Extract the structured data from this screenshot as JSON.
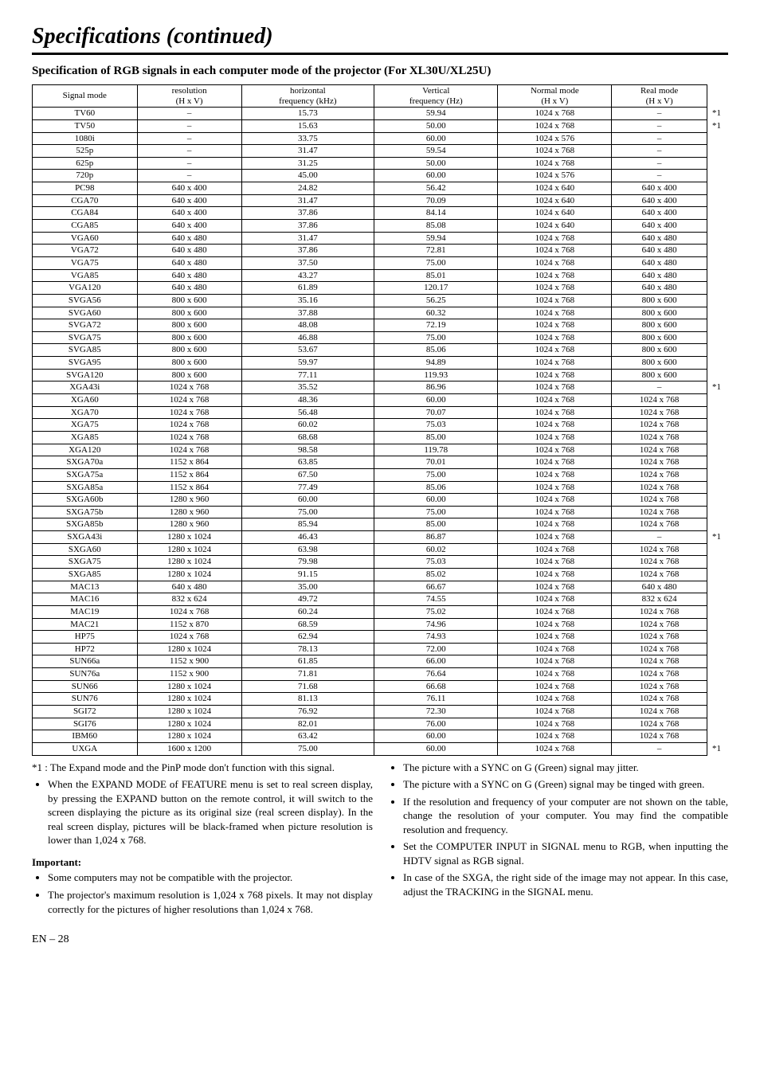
{
  "title": "Specifications (continued)",
  "subtitle": "Specification of RGB signals in each computer mode of the projector (For XL30U/XL25U)",
  "table": {
    "headers": [
      {
        "l1": "Signal mode",
        "l2": ""
      },
      {
        "l1": "resolution",
        "l2": "(H x V)"
      },
      {
        "l1": "horizontal",
        "l2": "frequency (kHz)"
      },
      {
        "l1": "Vertical",
        "l2": "frequency (Hz)"
      },
      {
        "l1": "Normal mode",
        "l2": "(H x V)"
      },
      {
        "l1": "Real mode",
        "l2": "(H x V)"
      }
    ],
    "rows": [
      {
        "c": [
          "TV60",
          "–",
          "15.73",
          "59.94",
          "1024 x 768",
          "–"
        ],
        "n": "*1"
      },
      {
        "c": [
          "TV50",
          "–",
          "15.63",
          "50.00",
          "1024 x 768",
          "–"
        ],
        "n": "*1"
      },
      {
        "c": [
          "1080i",
          "–",
          "33.75",
          "60.00",
          "1024 x 576",
          "–"
        ],
        "n": ""
      },
      {
        "c": [
          "525p",
          "–",
          "31.47",
          "59.54",
          "1024 x 768",
          "–"
        ],
        "n": ""
      },
      {
        "c": [
          "625p",
          "–",
          "31.25",
          "50.00",
          "1024 x 768",
          "–"
        ],
        "n": ""
      },
      {
        "c": [
          "720p",
          "–",
          "45.00",
          "60.00",
          "1024 x 576",
          "–"
        ],
        "n": ""
      },
      {
        "c": [
          "PC98",
          "640 x 400",
          "24.82",
          "56.42",
          "1024 x 640",
          "640 x 400"
        ],
        "n": ""
      },
      {
        "c": [
          "CGA70",
          "640 x 400",
          "31.47",
          "70.09",
          "1024 x 640",
          "640 x 400"
        ],
        "n": ""
      },
      {
        "c": [
          "CGA84",
          "640 x 400",
          "37.86",
          "84.14",
          "1024 x 640",
          "640 x 400"
        ],
        "n": ""
      },
      {
        "c": [
          "CGA85",
          "640 x 400",
          "37.86",
          "85.08",
          "1024 x 640",
          "640 x 400"
        ],
        "n": ""
      },
      {
        "c": [
          "VGA60",
          "640 x 480",
          "31.47",
          "59.94",
          "1024 x 768",
          "640 x 480"
        ],
        "n": ""
      },
      {
        "c": [
          "VGA72",
          "640 x 480",
          "37.86",
          "72.81",
          "1024 x 768",
          "640 x 480"
        ],
        "n": ""
      },
      {
        "c": [
          "VGA75",
          "640 x 480",
          "37.50",
          "75.00",
          "1024 x 768",
          "640 x 480"
        ],
        "n": ""
      },
      {
        "c": [
          "VGA85",
          "640 x 480",
          "43.27",
          "85.01",
          "1024 x 768",
          "640 x 480"
        ],
        "n": ""
      },
      {
        "c": [
          "VGA120",
          "640 x 480",
          "61.89",
          "120.17",
          "1024 x 768",
          "640 x 480"
        ],
        "n": ""
      },
      {
        "c": [
          "SVGA56",
          "800 x 600",
          "35.16",
          "56.25",
          "1024 x 768",
          "800 x 600"
        ],
        "n": ""
      },
      {
        "c": [
          "SVGA60",
          "800 x 600",
          "37.88",
          "60.32",
          "1024 x 768",
          "800 x 600"
        ],
        "n": ""
      },
      {
        "c": [
          "SVGA72",
          "800 x 600",
          "48.08",
          "72.19",
          "1024 x 768",
          "800 x 600"
        ],
        "n": ""
      },
      {
        "c": [
          "SVGA75",
          "800 x 600",
          "46.88",
          "75.00",
          "1024 x 768",
          "800 x 600"
        ],
        "n": ""
      },
      {
        "c": [
          "SVGA85",
          "800 x 600",
          "53.67",
          "85.06",
          "1024 x 768",
          "800 x 600"
        ],
        "n": ""
      },
      {
        "c": [
          "SVGA95",
          "800 x 600",
          "59.97",
          "94.89",
          "1024 x 768",
          "800 x 600"
        ],
        "n": ""
      },
      {
        "c": [
          "SVGA120",
          "800 x 600",
          "77.11",
          "119.93",
          "1024 x 768",
          "800 x 600"
        ],
        "n": ""
      },
      {
        "c": [
          "XGA43i",
          "1024 x 768",
          "35.52",
          "86.96",
          "1024 x 768",
          "–"
        ],
        "n": "*1"
      },
      {
        "c": [
          "XGA60",
          "1024 x 768",
          "48.36",
          "60.00",
          "1024 x 768",
          "1024 x 768"
        ],
        "n": ""
      },
      {
        "c": [
          "XGA70",
          "1024 x 768",
          "56.48",
          "70.07",
          "1024 x 768",
          "1024 x 768"
        ],
        "n": ""
      },
      {
        "c": [
          "XGA75",
          "1024 x 768",
          "60.02",
          "75.03",
          "1024 x 768",
          "1024 x 768"
        ],
        "n": ""
      },
      {
        "c": [
          "XGA85",
          "1024 x 768",
          "68.68",
          "85.00",
          "1024 x 768",
          "1024 x 768"
        ],
        "n": ""
      },
      {
        "c": [
          "XGA120",
          "1024 x 768",
          "98.58",
          "119.78",
          "1024 x 768",
          "1024 x 768"
        ],
        "n": ""
      },
      {
        "c": [
          "SXGA70a",
          "1152 x 864",
          "63.85",
          "70.01",
          "1024 x 768",
          "1024 x 768"
        ],
        "n": ""
      },
      {
        "c": [
          "SXGA75a",
          "1152 x 864",
          "67.50",
          "75.00",
          "1024 x 768",
          "1024 x 768"
        ],
        "n": ""
      },
      {
        "c": [
          "SXGA85a",
          "1152 x 864",
          "77.49",
          "85.06",
          "1024 x 768",
          "1024 x 768"
        ],
        "n": ""
      },
      {
        "c": [
          "SXGA60b",
          "1280 x 960",
          "60.00",
          "60.00",
          "1024 x 768",
          "1024 x 768"
        ],
        "n": ""
      },
      {
        "c": [
          "SXGA75b",
          "1280 x 960",
          "75.00",
          "75.00",
          "1024 x 768",
          "1024 x 768"
        ],
        "n": ""
      },
      {
        "c": [
          "SXGA85b",
          "1280 x 960",
          "85.94",
          "85.00",
          "1024 x 768",
          "1024 x 768"
        ],
        "n": ""
      },
      {
        "c": [
          "SXGA43i",
          "1280 x 1024",
          "46.43",
          "86.87",
          "1024 x 768",
          "–"
        ],
        "n": "*1"
      },
      {
        "c": [
          "SXGA60",
          "1280 x 1024",
          "63.98",
          "60.02",
          "1024 x 768",
          "1024 x 768"
        ],
        "n": ""
      },
      {
        "c": [
          "SXGA75",
          "1280 x 1024",
          "79.98",
          "75.03",
          "1024 x 768",
          "1024 x 768"
        ],
        "n": ""
      },
      {
        "c": [
          "SXGA85",
          "1280 x 1024",
          "91.15",
          "85.02",
          "1024 x 768",
          "1024 x 768"
        ],
        "n": ""
      },
      {
        "c": [
          "MAC13",
          "640 x 480",
          "35.00",
          "66.67",
          "1024 x 768",
          "640 x 480"
        ],
        "n": ""
      },
      {
        "c": [
          "MAC16",
          "832 x 624",
          "49.72",
          "74.55",
          "1024 x 768",
          "832 x 624"
        ],
        "n": ""
      },
      {
        "c": [
          "MAC19",
          "1024 x 768",
          "60.24",
          "75.02",
          "1024 x 768",
          "1024 x 768"
        ],
        "n": ""
      },
      {
        "c": [
          "MAC21",
          "1152 x 870",
          "68.59",
          "74.96",
          "1024 x 768",
          "1024 x 768"
        ],
        "n": ""
      },
      {
        "c": [
          "HP75",
          "1024 x 768",
          "62.94",
          "74.93",
          "1024 x 768",
          "1024 x 768"
        ],
        "n": ""
      },
      {
        "c": [
          "HP72",
          "1280 x 1024",
          "78.13",
          "72.00",
          "1024 x 768",
          "1024 x 768"
        ],
        "n": ""
      },
      {
        "c": [
          "SUN66a",
          "1152 x 900",
          "61.85",
          "66.00",
          "1024 x 768",
          "1024 x 768"
        ],
        "n": ""
      },
      {
        "c": [
          "SUN76a",
          "1152 x 900",
          "71.81",
          "76.64",
          "1024 x 768",
          "1024 x 768"
        ],
        "n": ""
      },
      {
        "c": [
          "SUN66",
          "1280 x 1024",
          "71.68",
          "66.68",
          "1024 x 768",
          "1024 x 768"
        ],
        "n": ""
      },
      {
        "c": [
          "SUN76",
          "1280 x 1024",
          "81.13",
          "76.11",
          "1024 x 768",
          "1024 x 768"
        ],
        "n": ""
      },
      {
        "c": [
          "SGI72",
          "1280 x 1024",
          "76.92",
          "72.30",
          "1024 x 768",
          "1024 x 768"
        ],
        "n": ""
      },
      {
        "c": [
          "SGI76",
          "1280 x 1024",
          "82.01",
          "76.00",
          "1024 x 768",
          "1024 x 768"
        ],
        "n": ""
      },
      {
        "c": [
          "IBM60",
          "1280 x 1024",
          "63.42",
          "60.00",
          "1024 x 768",
          "1024 x 768"
        ],
        "n": ""
      },
      {
        "c": [
          "UXGA",
          "1600 x 1200",
          "75.00",
          "60.00",
          "1024 x 768",
          "–"
        ],
        "n": "*1"
      }
    ]
  },
  "footnote1": "*1 : The Expand mode and the PinP mode don't function with this signal.",
  "left_bullets": [
    "When the EXPAND MODE of FEATURE menu is set to real screen display, by pressing the EXPAND button on the remote control, it will switch to the screen displaying the picture as its original size (real screen display).  In the real screen display, pictures will be black-framed when picture resolution is lower than 1,024 x 768."
  ],
  "important_label": "Important:",
  "important_bullets": [
    "Some computers may not be compatible with the projector.",
    "The projector's maximum resolution is 1,024 x 768 pixels.  It may not display correctly for the pictures of higher resolutions than 1,024 x 768."
  ],
  "right_bullets": [
    "The picture with a SYNC on G (Green) signal may jitter.",
    "The picture with a SYNC on G (Green) signal may be tinged with green.",
    "If the resolution and frequency of your computer are not shown on the table, change the resolution of your computer. You may find the compatible resolution and frequency.",
    "Set the COMPUTER INPUT in SIGNAL menu to RGB, when inputting the HDTV signal as RGB signal.",
    "In case of the SXGA, the right side of the image may not appear. In this case, adjust the TRACKING in the SIGNAL menu."
  ],
  "pageno": "EN – 28"
}
